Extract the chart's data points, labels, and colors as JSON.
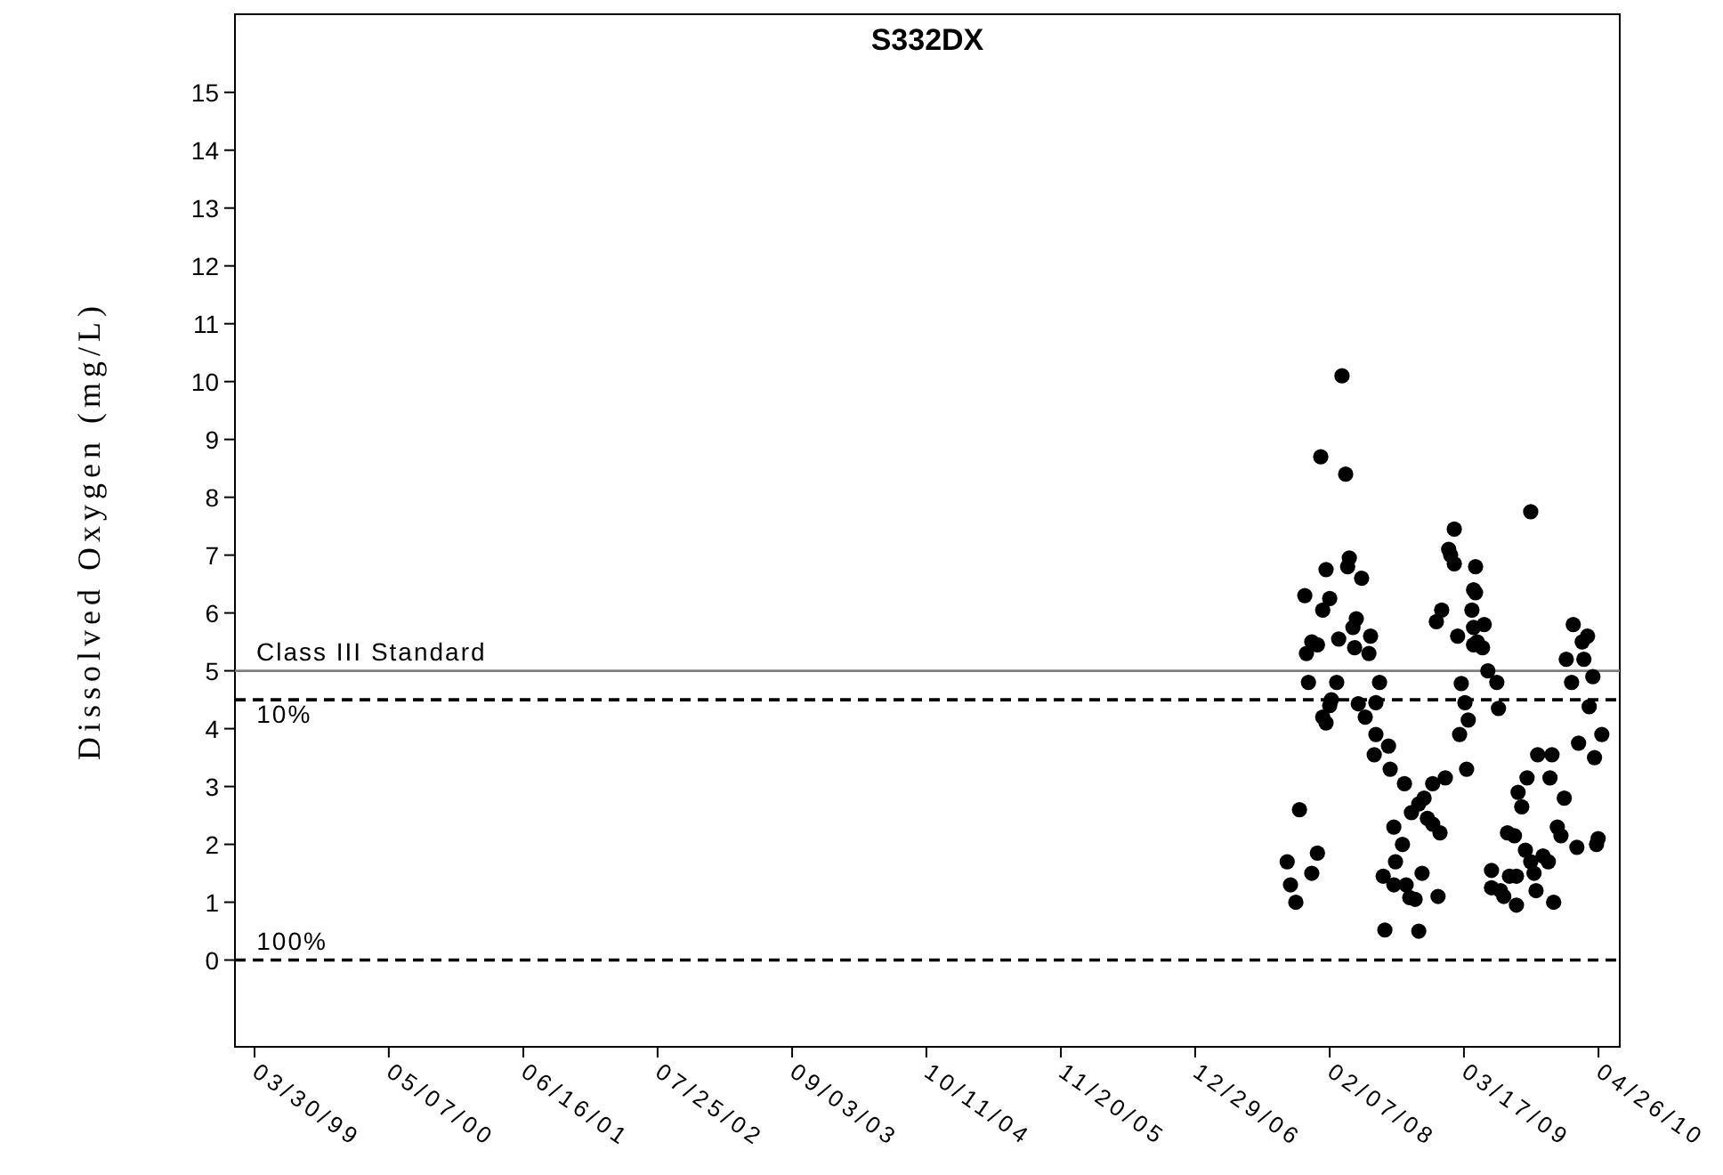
{
  "chart_data": {
    "type": "scatter",
    "title": "S332DX",
    "ylabel": "Dissolved Oxygen (mg/L)",
    "xlim": [
      "1999-01-30",
      "2010-06-29"
    ],
    "ylim": [
      -1.5,
      16.35
    ],
    "xticks": [
      {
        "value": "1999-03-30",
        "label": "03/30/99"
      },
      {
        "value": "2000-05-07",
        "label": "05/07/00"
      },
      {
        "value": "2001-06-16",
        "label": "06/16/01"
      },
      {
        "value": "2002-07-25",
        "label": "07/25/02"
      },
      {
        "value": "2003-09-03",
        "label": "09/03/03"
      },
      {
        "value": "2004-10-11",
        "label": "10/11/04"
      },
      {
        "value": "2005-11-20",
        "label": "11/20/05"
      },
      {
        "value": "2006-12-29",
        "label": "12/29/06"
      },
      {
        "value": "2008-02-07",
        "label": "02/07/08"
      },
      {
        "value": "2009-03-17",
        "label": "03/17/09"
      },
      {
        "value": "2010-04-26",
        "label": "04/26/10"
      }
    ],
    "yticks": [
      0,
      1,
      2,
      3,
      4,
      5,
      6,
      7,
      8,
      9,
      10,
      11,
      12,
      13,
      14,
      15
    ],
    "grid": false,
    "marker": "circle",
    "ref_lines": [
      {
        "axis": "y",
        "value": 5,
        "label": "Class III Standard",
        "color": "#808080",
        "line_style": "solid"
      },
      {
        "axis": "y",
        "value": 4.5,
        "color": "#000000",
        "line_style": "dashed"
      },
      {
        "axis": "y",
        "value": 0,
        "color": "#000000",
        "line_style": "dashed"
      }
    ],
    "annotations": [
      {
        "text": "10%",
        "x": "1999-04-05",
        "y": 4.5
      },
      {
        "text": "100%",
        "x": "1999-04-05",
        "y": 0
      }
    ],
    "series": [
      {
        "color": "#000000",
        "x": [
          "2007-10-02",
          "2007-10-12",
          "2007-10-28",
          "2007-11-08",
          "2007-11-24",
          "2007-11-29",
          "2007-12-05",
          "2007-12-15",
          "2007-12-15",
          "2008-01-01",
          "2008-01-01",
          "2008-01-11",
          "2008-01-17",
          "2008-01-17",
          "2008-01-27",
          "2008-01-27",
          "2008-02-07",
          "2008-02-07",
          "2008-02-12",
          "2008-02-28",
          "2008-03-05",
          "2008-03-15",
          "2008-03-26",
          "2008-04-01",
          "2008-04-06",
          "2008-04-17",
          "2008-04-22",
          "2008-04-27",
          "2008-05-03",
          "2008-05-13",
          "2008-05-24",
          "2008-06-04",
          "2008-06-09",
          "2008-06-20",
          "2008-06-25",
          "2008-06-25",
          "2008-07-06",
          "2008-07-17",
          "2008-07-22",
          "2008-08-02",
          "2008-08-07",
          "2008-08-18",
          "2008-08-18",
          "2008-08-23",
          "2008-09-13",
          "2008-09-19",
          "2008-09-24",
          "2008-10-05",
          "2008-10-10",
          "2008-10-21",
          "2008-11-01",
          "2008-11-01",
          "2008-11-11",
          "2008-11-17",
          "2008-11-27",
          "2008-12-13",
          "2008-12-13",
          "2008-12-24",
          "2008-12-29",
          "2009-01-04",
          "2009-01-09",
          "2009-01-20",
          "2009-01-30",
          "2009-02-05",
          "2009-02-16",
          "2009-02-16",
          "2009-02-26",
          "2009-03-04",
          "2009-03-09",
          "2009-03-20",
          "2009-03-25",
          "2009-03-30",
          "2009-04-10",
          "2009-04-15",
          "2009-04-15",
          "2009-04-15",
          "2009-04-21",
          "2009-04-26",
          "2009-04-21",
          "2009-05-17",
          "2009-05-12",
          "2009-05-28",
          "2009-06-24",
          "2009-06-29",
          "2009-06-08",
          "2009-06-08",
          "2009-07-05",
          "2009-07-15",
          "2009-07-26",
          "2009-08-01",
          "2009-08-16",
          "2009-08-22",
          "2009-08-22",
          "2009-08-27",
          "2009-09-07",
          "2009-09-18",
          "2009-09-23",
          "2009-10-04",
          "2009-10-04",
          "2009-10-14",
          "2009-10-20",
          "2009-10-25",
          "2009-11-10",
          "2009-11-26",
          "2009-12-01",
          "2009-12-07",
          "2009-12-12",
          "2009-12-23",
          "2010-01-03",
          "2010-01-13",
          "2010-01-19",
          "2010-02-04",
          "2010-02-09",
          "2010-02-20",
          "2010-02-25",
          "2010-03-08",
          "2010-03-13",
          "2010-03-24",
          "2010-03-29",
          "2010-04-09",
          "2010-04-14",
          "2010-04-20",
          "2010-04-25",
          "2010-05-06"
        ],
        "values": [
          1.7,
          1.3,
          1.0,
          2.6,
          6.3,
          5.3,
          4.8,
          5.5,
          1.5,
          1.85,
          5.45,
          8.7,
          6.05,
          4.2,
          6.75,
          4.1,
          6.25,
          4.4,
          4.5,
          4.8,
          5.55,
          10.1,
          8.4,
          6.8,
          6.95,
          5.75,
          5.4,
          5.9,
          4.43,
          6.6,
          4.2,
          5.3,
          5.6,
          3.55,
          4.45,
          3.9,
          4.8,
          1.45,
          0.52,
          3.7,
          3.3,
          2.3,
          1.3,
          1.7,
          2.0,
          3.05,
          1.3,
          1.08,
          2.55,
          1.05,
          2.7,
          0.5,
          1.5,
          2.8,
          2.45,
          2.35,
          3.05,
          5.85,
          1.1,
          2.2,
          6.05,
          3.15,
          7.1,
          7.0,
          7.45,
          6.85,
          5.6,
          3.9,
          4.78,
          4.45,
          3.3,
          4.15,
          6.05,
          5.75,
          5.45,
          6.4,
          6.8,
          5.5,
          6.35,
          5.8,
          5.4,
          5.0,
          4.8,
          4.35,
          1.55,
          1.25,
          1.2,
          1.1,
          2.2,
          1.45,
          2.15,
          1.45,
          0.95,
          2.9,
          2.65,
          1.9,
          3.15,
          7.75,
          1.7,
          1.5,
          1.2,
          3.55,
          1.8,
          1.7,
          3.15,
          3.55,
          1.0,
          2.3,
          2.15,
          2.8,
          5.2,
          4.8,
          5.8,
          1.95,
          3.75,
          5.5,
          5.2,
          5.6,
          4.38,
          4.9,
          3.5,
          2.0,
          2.1,
          3.9
        ]
      }
    ]
  }
}
